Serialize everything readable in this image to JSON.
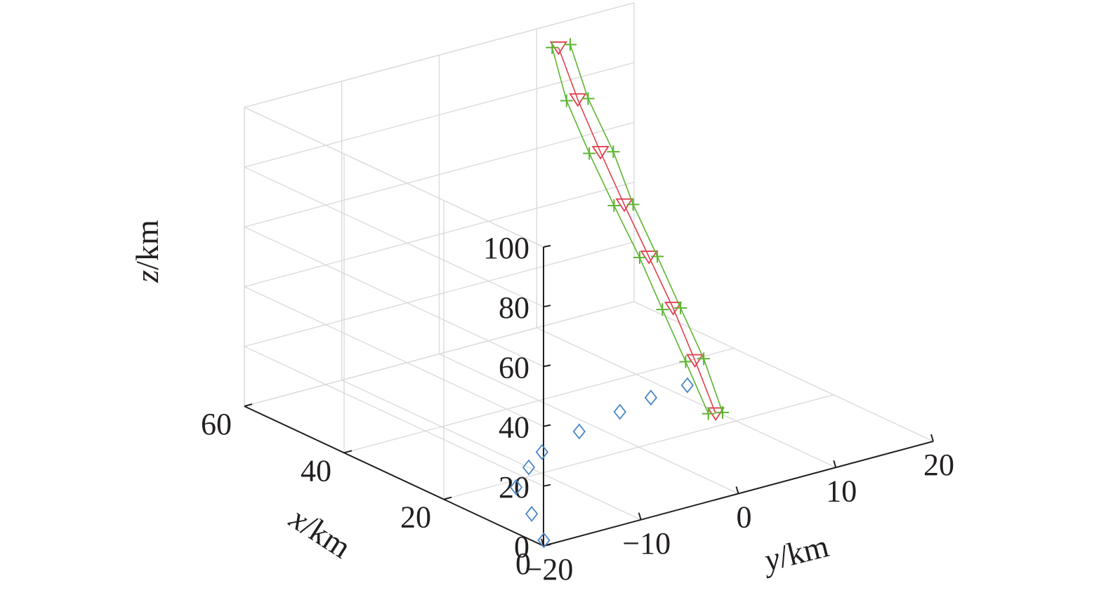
{
  "chart_data": {
    "type": "scatter3d",
    "xlabel": {
      "var": "x",
      "unit": "/km"
    },
    "ylabel": {
      "var": "y",
      "unit": "/km"
    },
    "zlabel": {
      "var": "z",
      "unit": "/km"
    },
    "xlim": [
      0,
      60
    ],
    "ylim": [
      -20,
      20
    ],
    "zlim": [
      0,
      100
    ],
    "xticks": [
      0,
      20,
      40,
      60
    ],
    "yticks": [
      -20,
      -10,
      0,
      10,
      20
    ],
    "zticks": [
      0,
      20,
      40,
      60,
      80,
      100
    ],
    "xtick_labels": [
      "0",
      "20",
      "40",
      "60"
    ],
    "ytick_labels": [
      "−20",
      "−10",
      "0",
      "10",
      "20"
    ],
    "ztick_labels": [
      "0",
      "20",
      "40",
      "60",
      "80",
      "100"
    ],
    "grid": true,
    "series": [
      {
        "marker": "diamond",
        "color": "#4a86c5",
        "line": false,
        "points": [
          [
            1.5,
            -19.2,
            0
          ],
          [
            9.6,
            -16.3,
            0
          ],
          [
            18.0,
            -13.6,
            0
          ],
          [
            22.5,
            -10.0,
            0
          ],
          [
            25.7,
            -7.0,
            0
          ],
          [
            28.6,
            -1.7,
            0
          ],
          [
            31.0,
            3.7,
            0
          ],
          [
            32.6,
            7.7,
            0
          ],
          [
            33.3,
            11.8,
            0
          ]
        ]
      },
      {
        "marker": "triangle-down",
        "color": "#e04050",
        "line": true,
        "points": [
          [
            23.5,
            9.7,
            0
          ],
          [
            26.5,
            9.1,
            16
          ],
          [
            29.3,
            8.3,
            32
          ],
          [
            32.0,
            7.2,
            48
          ],
          [
            35.0,
            6.2,
            64
          ],
          [
            38.0,
            5.3,
            80
          ],
          [
            41.0,
            4.5,
            96
          ],
          [
            43.5,
            3.8,
            112
          ]
        ]
      },
      {
        "marker": "plus",
        "color": "#5cb531",
        "line": true,
        "points": [
          [
            23.3,
            10.3,
            0
          ],
          [
            26.3,
            9.9,
            16
          ],
          [
            28.8,
            8.8,
            32
          ],
          [
            31.5,
            7.8,
            48
          ],
          [
            34.4,
            6.8,
            64
          ],
          [
            37.2,
            6.2,
            80
          ],
          [
            40.5,
            5.3,
            96
          ],
          [
            43.5,
            5.0,
            112
          ]
        ]
      },
      {
        "marker": "plus",
        "color": "#5cb531",
        "line": true,
        "points": [
          [
            24.0,
            9.2,
            0
          ],
          [
            26.8,
            8.3,
            16
          ],
          [
            29.7,
            7.4,
            32
          ],
          [
            32.5,
            6.5,
            48
          ],
          [
            35.5,
            5.4,
            64
          ],
          [
            38.5,
            4.4,
            80
          ],
          [
            41.5,
            3.6,
            96
          ],
          [
            44.0,
            3.4,
            112
          ]
        ]
      }
    ]
  }
}
